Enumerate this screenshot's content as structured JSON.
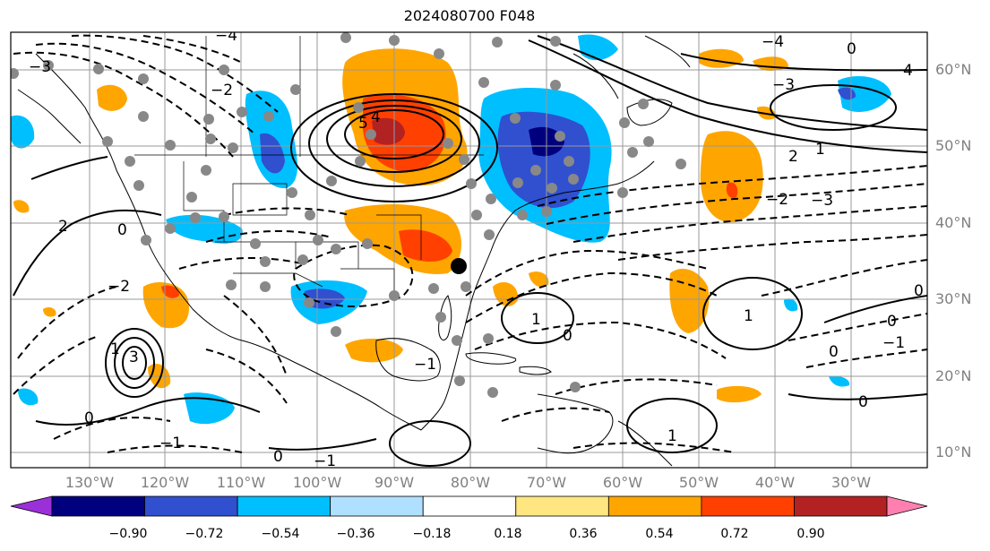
{
  "title": "2024080700 F048",
  "lat_labels": [
    "60°N",
    "50°N",
    "40°N",
    "30°N",
    "20°N",
    "10°N"
  ],
  "lon_labels": [
    "130°W",
    "120°W",
    "110°W",
    "100°W",
    "90°W",
    "80°W",
    "70°W",
    "60°W",
    "50°W",
    "40°W",
    "30°W"
  ],
  "colorbar": {
    "ticks": [
      "−0.90",
      "−0.72",
      "−0.54",
      "−0.36",
      "−0.18",
      "0.18",
      "0.36",
      "0.54",
      "0.72",
      "0.90"
    ],
    "colors": [
      "#9b30d9",
      "#00007f",
      "#3050d0",
      "#00bfff",
      "#b0e0ff",
      "#ffffff",
      "#ffe680",
      "#ffa500",
      "#ff4000",
      "#b22222",
      "#ff80b0"
    ]
  },
  "contour_labels": [
    "1",
    "−1",
    "−2",
    "−3",
    "−4",
    "2",
    "3",
    "4",
    "0",
    "5"
  ],
  "legend_colors": {
    "neg_strong": "#00007f",
    "neg_mid": "#3050d0",
    "neg_light": "#00bfff",
    "pos_light": "#ffa500",
    "pos_mid": "#ff4000",
    "pos_strong": "#b22222"
  }
}
